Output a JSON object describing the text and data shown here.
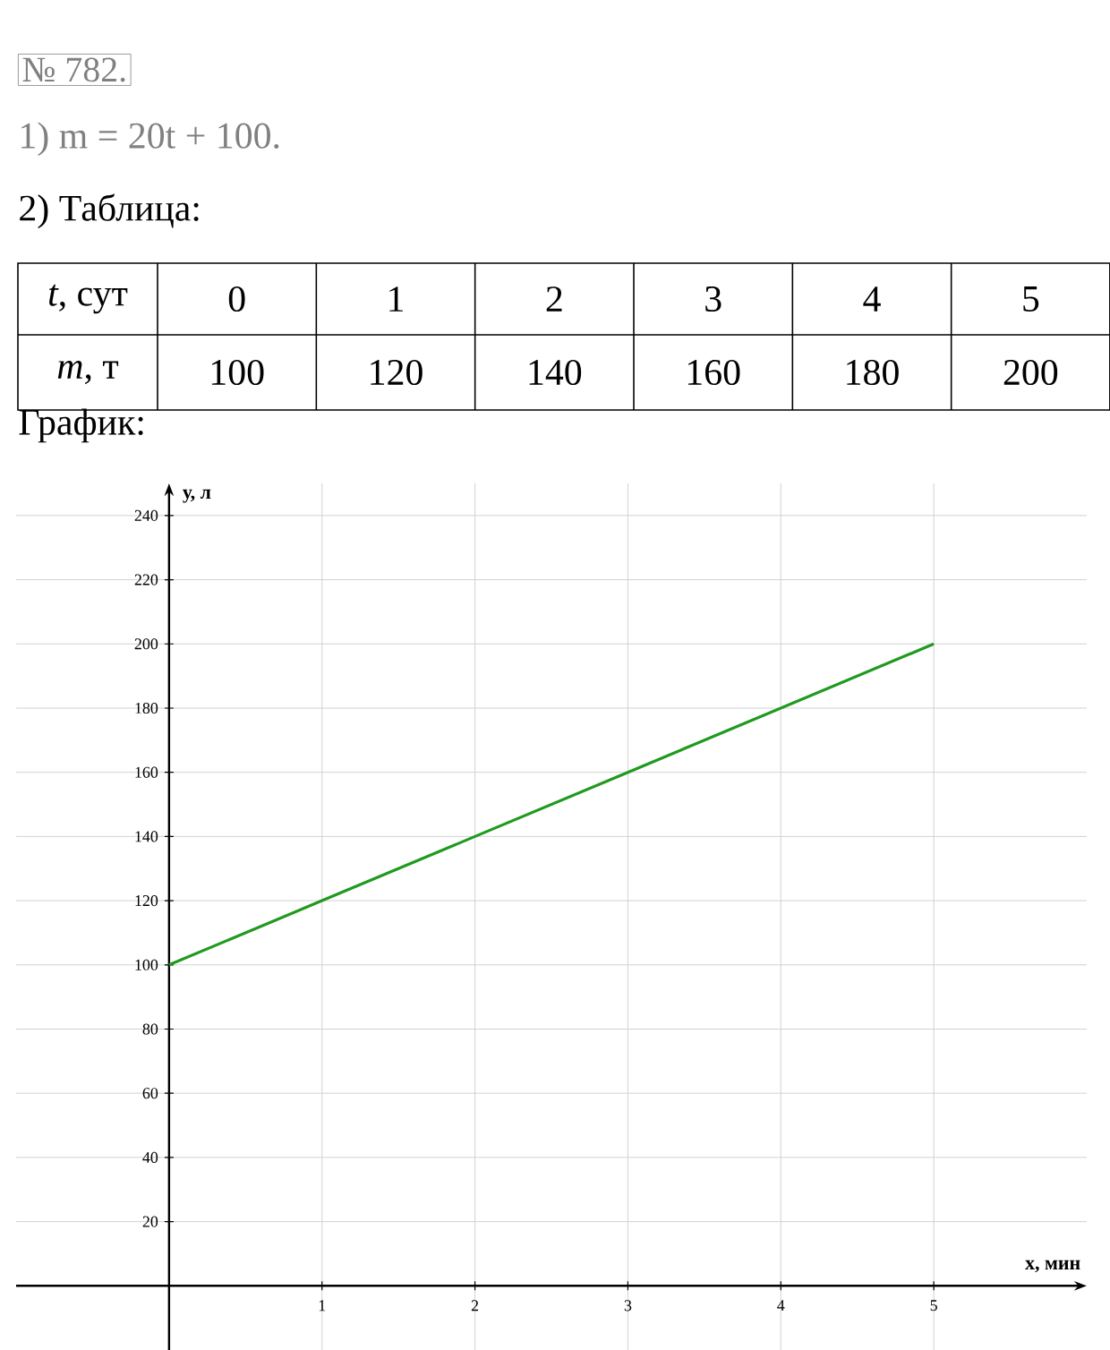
{
  "chart_data": {
    "type": "line",
    "title": "№ 782.",
    "annotations": [
      "1) m = 20t + 100.",
      "2) Таблица:",
      "*t*, сут",
      "0",
      "1",
      "2",
      "3",
      "4",
      "5",
      "*m*, т",
      "100",
      "120",
      "140",
      "160",
      "180",
      "200",
      "График:"
    ],
    "xlabel": "x, мин",
    "ylabel": "у, л",
    "x": [
      0,
      1,
      2,
      3,
      4,
      5
    ],
    "series": [
      {
        "color": "#1f9a1f",
        "values": [
          100,
          120,
          140,
          160,
          180,
          200
        ]
      }
    ],
    "xlim": [
      -1,
      6
    ],
    "ylim": [
      -20,
      250
    ],
    "xticks": [
      1,
      2,
      3,
      4,
      5
    ],
    "yticks": [
      20,
      40,
      60,
      80,
      100,
      120,
      140,
      160,
      180,
      200,
      220,
      240
    ],
    "grid": true,
    "marker": "none",
    "line_style": "solid"
  }
}
